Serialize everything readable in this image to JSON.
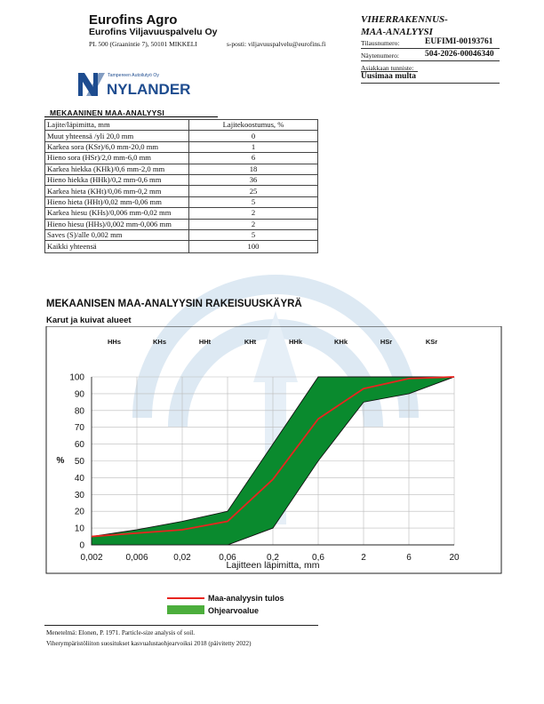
{
  "header": {
    "company_name": "Eurofins Agro",
    "company_sub": "Eurofins Viljavuuspalvelu Oy",
    "address": "PL 500 (Graanintie 7), 50101 MIKKELI",
    "email": "s-posti: viljavuuspalvelu@eurofins.fi",
    "title_line1": "VIHERRAKENNUS-",
    "title_line2": "MAA-ANALYYSI",
    "order_label": "Tilausnumero:",
    "order_value": "EUFIMI-00193761",
    "sample_label": "Näytenumero:",
    "sample_value": "504-2026-00046340",
    "customer_label": "Asiakkaan tunniste:",
    "customer_value": "Uusimaa multa"
  },
  "logo": {
    "tagline": "Tampereen Autoilutyö Oy",
    "name": "NYLANDER",
    "color": "#1e4c8f"
  },
  "table": {
    "title": "MEKAANINEN MAA-ANALYYSI",
    "header_left": "Lajite/läpimitta, mm",
    "header_right": "Lajitekoostumus, %",
    "rows": [
      {
        "label": "Muut yhteensä /yli 20,0 mm",
        "value": "0"
      },
      {
        "label": "Karkea sora (KSr)/6,0 mm-20,0 mm",
        "value": "1"
      },
      {
        "label": "Hieno sora (HSr)/2,0 mm-6,0 mm",
        "value": "6"
      },
      {
        "label": "Karkea hiekka (KHk)/0,6 mm-2,0 mm",
        "value": "18"
      },
      {
        "label": "Hieno hiekka (HHk)/0,2 mm-0,6 mm",
        "value": "36"
      },
      {
        "label": "Karkea hieta (KHt)/0,06 mm-0,2 mm",
        "value": "25"
      },
      {
        "label": "Hieno hieta (HHt)/0,02 mm-0,06 mm",
        "value": "5"
      },
      {
        "label": "Karkea hiesu (KHs)/0,006 mm-0,02 mm",
        "value": "2"
      },
      {
        "label": "Hieno hiesu (HHs)/0,002 mm-0,006 mm",
        "value": "2"
      },
      {
        "label": "Saves (S)/alle 0,002 mm",
        "value": "5"
      }
    ],
    "total_label": "Kaikki yhteensä",
    "total_value": "100"
  },
  "chart_data": {
    "type": "line",
    "title": "MEKAANISEN MAA-ANALYYSIN RAKEISUUSKÄYRÄ",
    "subtitle": "Karut ja kuivat alueet",
    "xlabel": "Lajitteen läpimitta, mm",
    "ylabel": "%",
    "x_ticks": [
      "0,002",
      "0,006",
      "0,02",
      "0,06",
      "0,2",
      "0,6",
      "2",
      "6",
      "20"
    ],
    "y_ticks": [
      "0",
      "10",
      "20",
      "30",
      "40",
      "50",
      "60",
      "70",
      "80",
      "90",
      "100"
    ],
    "ylim": [
      0,
      100
    ],
    "top_labels": [
      "HHs",
      "KHs",
      "HHt",
      "KHt",
      "HHk",
      "KHk",
      "HSr",
      "KSr"
    ],
    "grid": true,
    "series": [
      {
        "name": "Maa-analyysin tulos",
        "x": [
          "0,002",
          "0,006",
          "0,02",
          "0,06",
          "0,2",
          "0,6",
          "2",
          "6",
          "20"
        ],
        "values": [
          5,
          7,
          9,
          14,
          39,
          75,
          93,
          99,
          100
        ],
        "color": "#e8251f"
      }
    ],
    "band": {
      "name": "Ohjearvoalue",
      "x": [
        "0,002",
        "0,006",
        "0,02",
        "0,06",
        "0,2",
        "0,6",
        "2",
        "6",
        "20"
      ],
      "upper": [
        5,
        9,
        14,
        20,
        60,
        100,
        100,
        100,
        100
      ],
      "lower": [
        0,
        0,
        0,
        0,
        10,
        50,
        85,
        90,
        100
      ],
      "color": "#0a8a2e"
    },
    "legend": [
      {
        "label": "Maa-analyysin tulos",
        "color": "#e8251f"
      },
      {
        "label": "Ohjearvoalue",
        "color": "#4cae3c"
      }
    ],
    "legend_position": "bottom-center"
  },
  "footer": {
    "line1": "Menetelmä: Elonen, P. 1971. Particle-size analysis of soil.",
    "line2": "Viherympäristöliiton suositukset kasvualustaohjearvoiksi 2018 (päivitetty 2022)"
  }
}
